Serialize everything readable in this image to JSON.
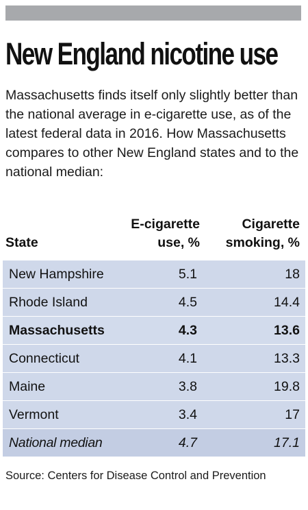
{
  "graphic": {
    "title": "New England nicotine use",
    "subtitle": "Massachusetts finds itself only slightly better than the national average in e-cigarette use, as of the latest federal data in 2016. How Massachusetts compares to other New England states and to the national median:",
    "source": "Source: Centers for Disease Control and Prevention"
  },
  "chart_data": {
    "type": "table",
    "title": "New England nicotine use",
    "columns": [
      "State",
      "E-cigarette use, %",
      "Cigarette smoking, %"
    ],
    "header_lines": {
      "state": "State",
      "ecig_line1": "E-cigarette",
      "ecig_line2": "use, %",
      "cig_line1": "Cigarette",
      "cig_line2": "smoking, %"
    },
    "rows": [
      {
        "state": "New Hampshire",
        "ecig": "5.1",
        "cig": "18",
        "style": "normal"
      },
      {
        "state": "Rhode Island",
        "ecig": "4.5",
        "cig": "14.4",
        "style": "normal"
      },
      {
        "state": "Massachusetts",
        "ecig": "4.3",
        "cig": "13.6",
        "style": "highlight"
      },
      {
        "state": "Connecticut",
        "ecig": "4.1",
        "cig": "13.3",
        "style": "normal"
      },
      {
        "state": "Maine",
        "ecig": "3.8",
        "cig": "19.8",
        "style": "normal"
      },
      {
        "state": "Vermont",
        "ecig": "3.4",
        "cig": "17",
        "style": "normal"
      },
      {
        "state": "National median",
        "ecig": "4.7",
        "cig": "17.1",
        "style": "median"
      }
    ],
    "colors": {
      "row_fill": "#cfd8ea",
      "median_fill": "#c3cde3",
      "top_bar": "#a7a9ac"
    }
  }
}
